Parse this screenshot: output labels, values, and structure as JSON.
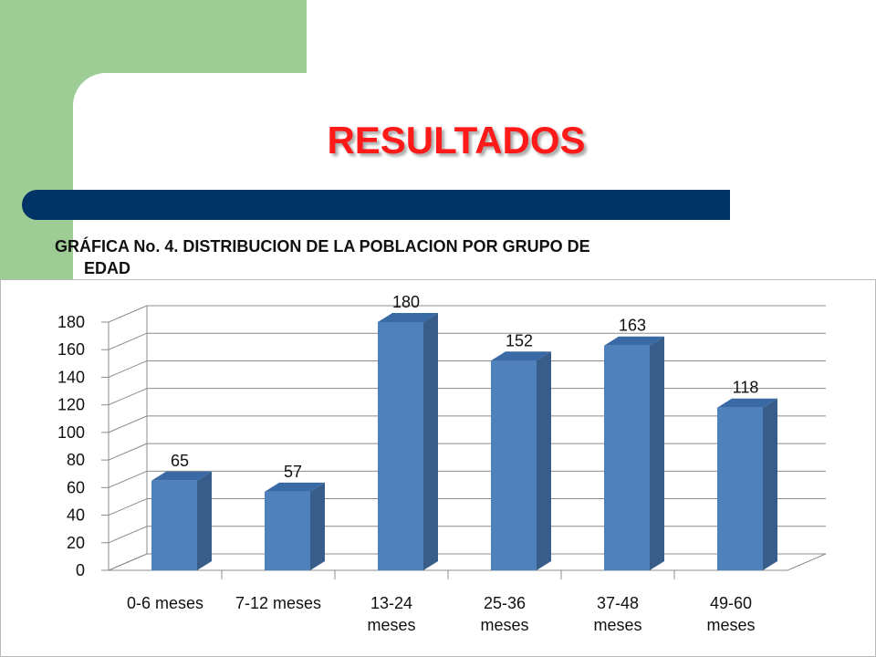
{
  "slide": {
    "title": "RESULTADOS",
    "subtitle_line1": "GRÁFICA No. 4. DISTRIBUCION DE LA POBLACION POR GRUPO DE",
    "subtitle_line2": "EDAD",
    "colors": {
      "green": "#9dcc95",
      "navy": "#003366",
      "title_red": "#ff1a1a",
      "bar_front": "#4f81bd",
      "bar_side": "#385d8a",
      "bar_top": "#3a6aa6"
    }
  },
  "chart_data": {
    "type": "bar",
    "categories": [
      [
        "0-6 meses"
      ],
      [
        "7-12 meses"
      ],
      [
        "13-24",
        "meses"
      ],
      [
        "25-36",
        "meses"
      ],
      [
        "37-48",
        "meses"
      ],
      [
        "49-60",
        "meses"
      ]
    ],
    "values": [
      65,
      57,
      180,
      152,
      163,
      118
    ],
    "data_labels": [
      "65",
      "57",
      "180",
      "152",
      "163",
      "118"
    ],
    "title": "",
    "xlabel": "",
    "ylabel": "",
    "ylim": [
      0,
      180
    ],
    "yticks": [
      0,
      20,
      40,
      60,
      80,
      100,
      120,
      140,
      160,
      180
    ],
    "grid": true,
    "legend": "none",
    "style": "3d-column"
  }
}
